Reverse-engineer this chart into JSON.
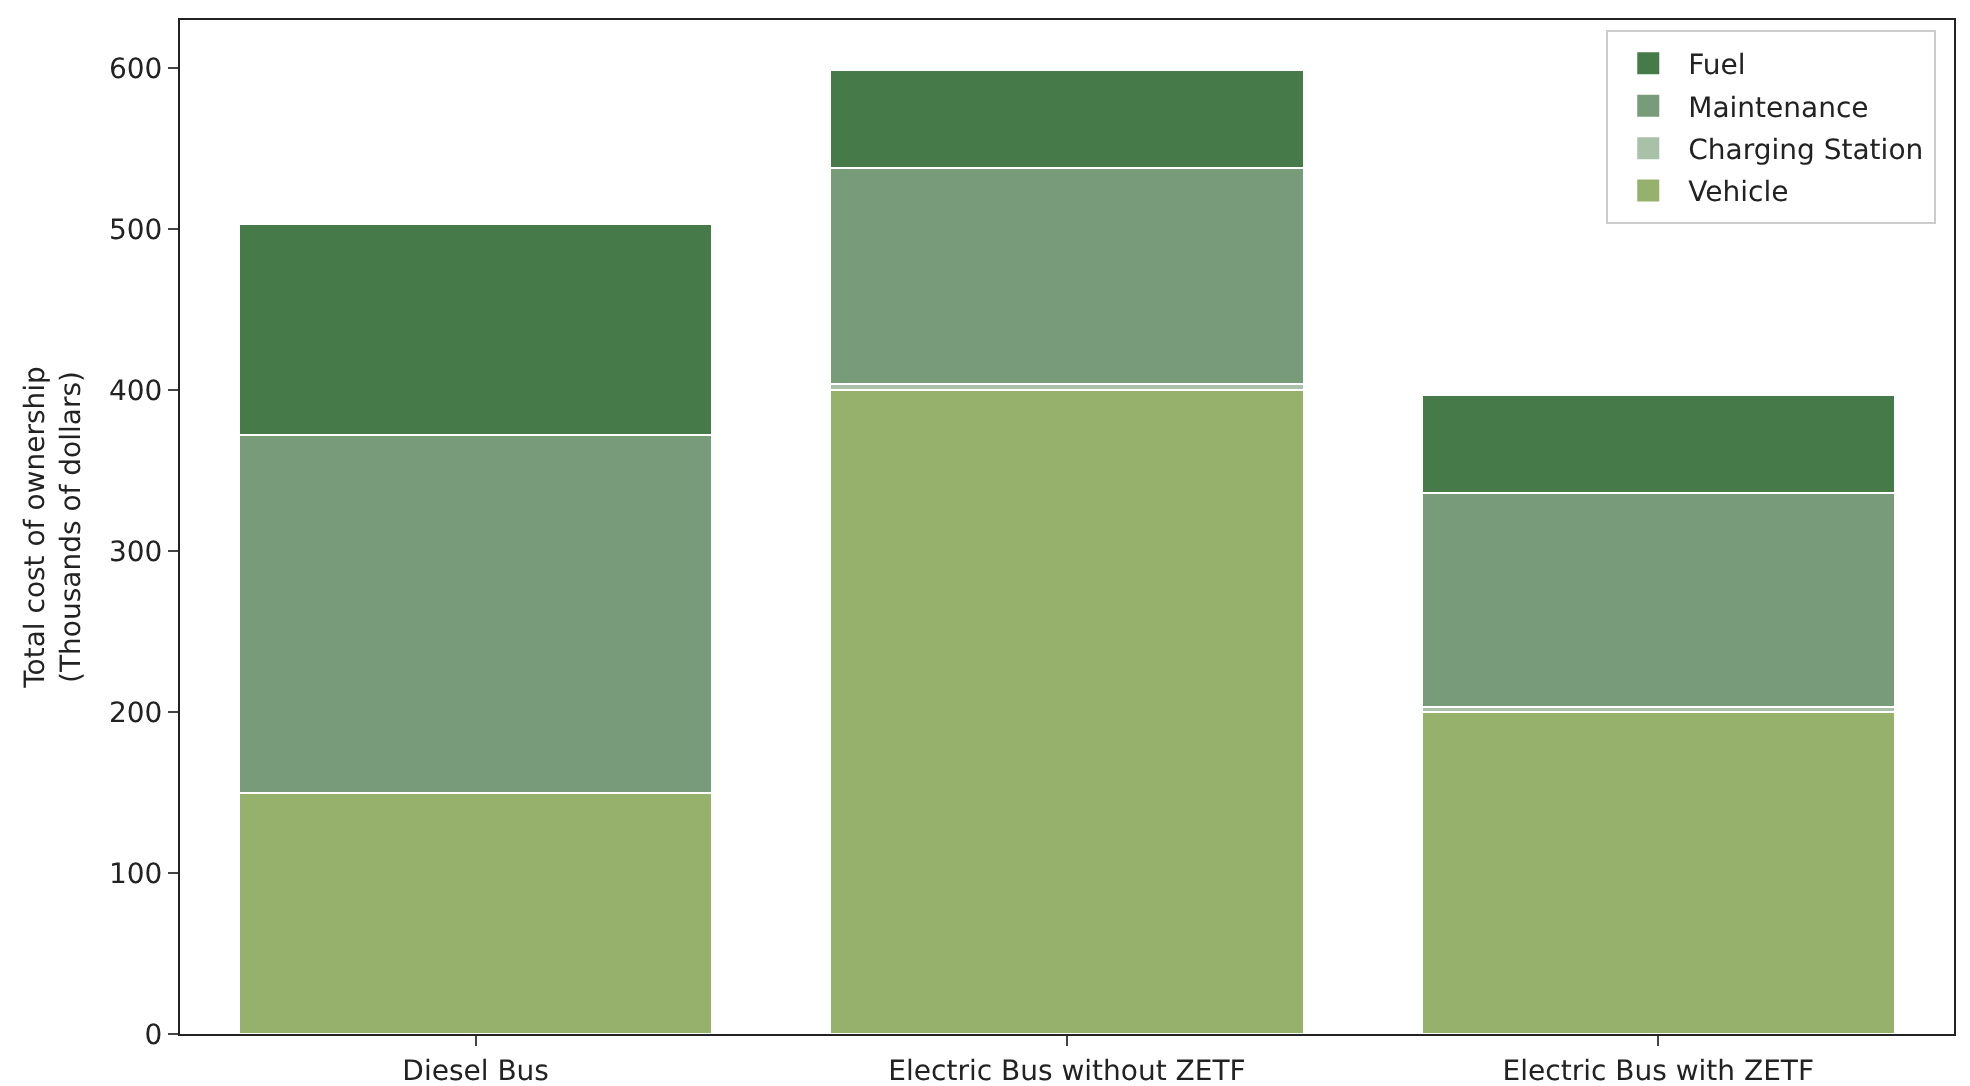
{
  "chart_data": {
    "type": "bar",
    "stacked": true,
    "ylabel": "Total cost of ownership\n(Thousands of dollars)",
    "categories": [
      "Diesel Bus",
      "Electric Bus without ZETF",
      "Electric Bus with ZETF"
    ],
    "series": [
      {
        "name": "Vehicle",
        "color": "#95b16c",
        "values": [
          150,
          400,
          200
        ]
      },
      {
        "name": "Charging Station",
        "color": "#a9c1a9",
        "values": [
          0,
          4,
          3
        ]
      },
      {
        "name": "Maintenance",
        "color": "#789b7a",
        "values": [
          222,
          134,
          133
        ]
      },
      {
        "name": "Fuel",
        "color": "#467a48",
        "values": [
          131,
          61,
          61
        ]
      }
    ],
    "ylim": [
      0,
      630
    ],
    "yticks": [
      0,
      100,
      200,
      300,
      400,
      500,
      600
    ],
    "grid": false,
    "legend": "top right"
  }
}
